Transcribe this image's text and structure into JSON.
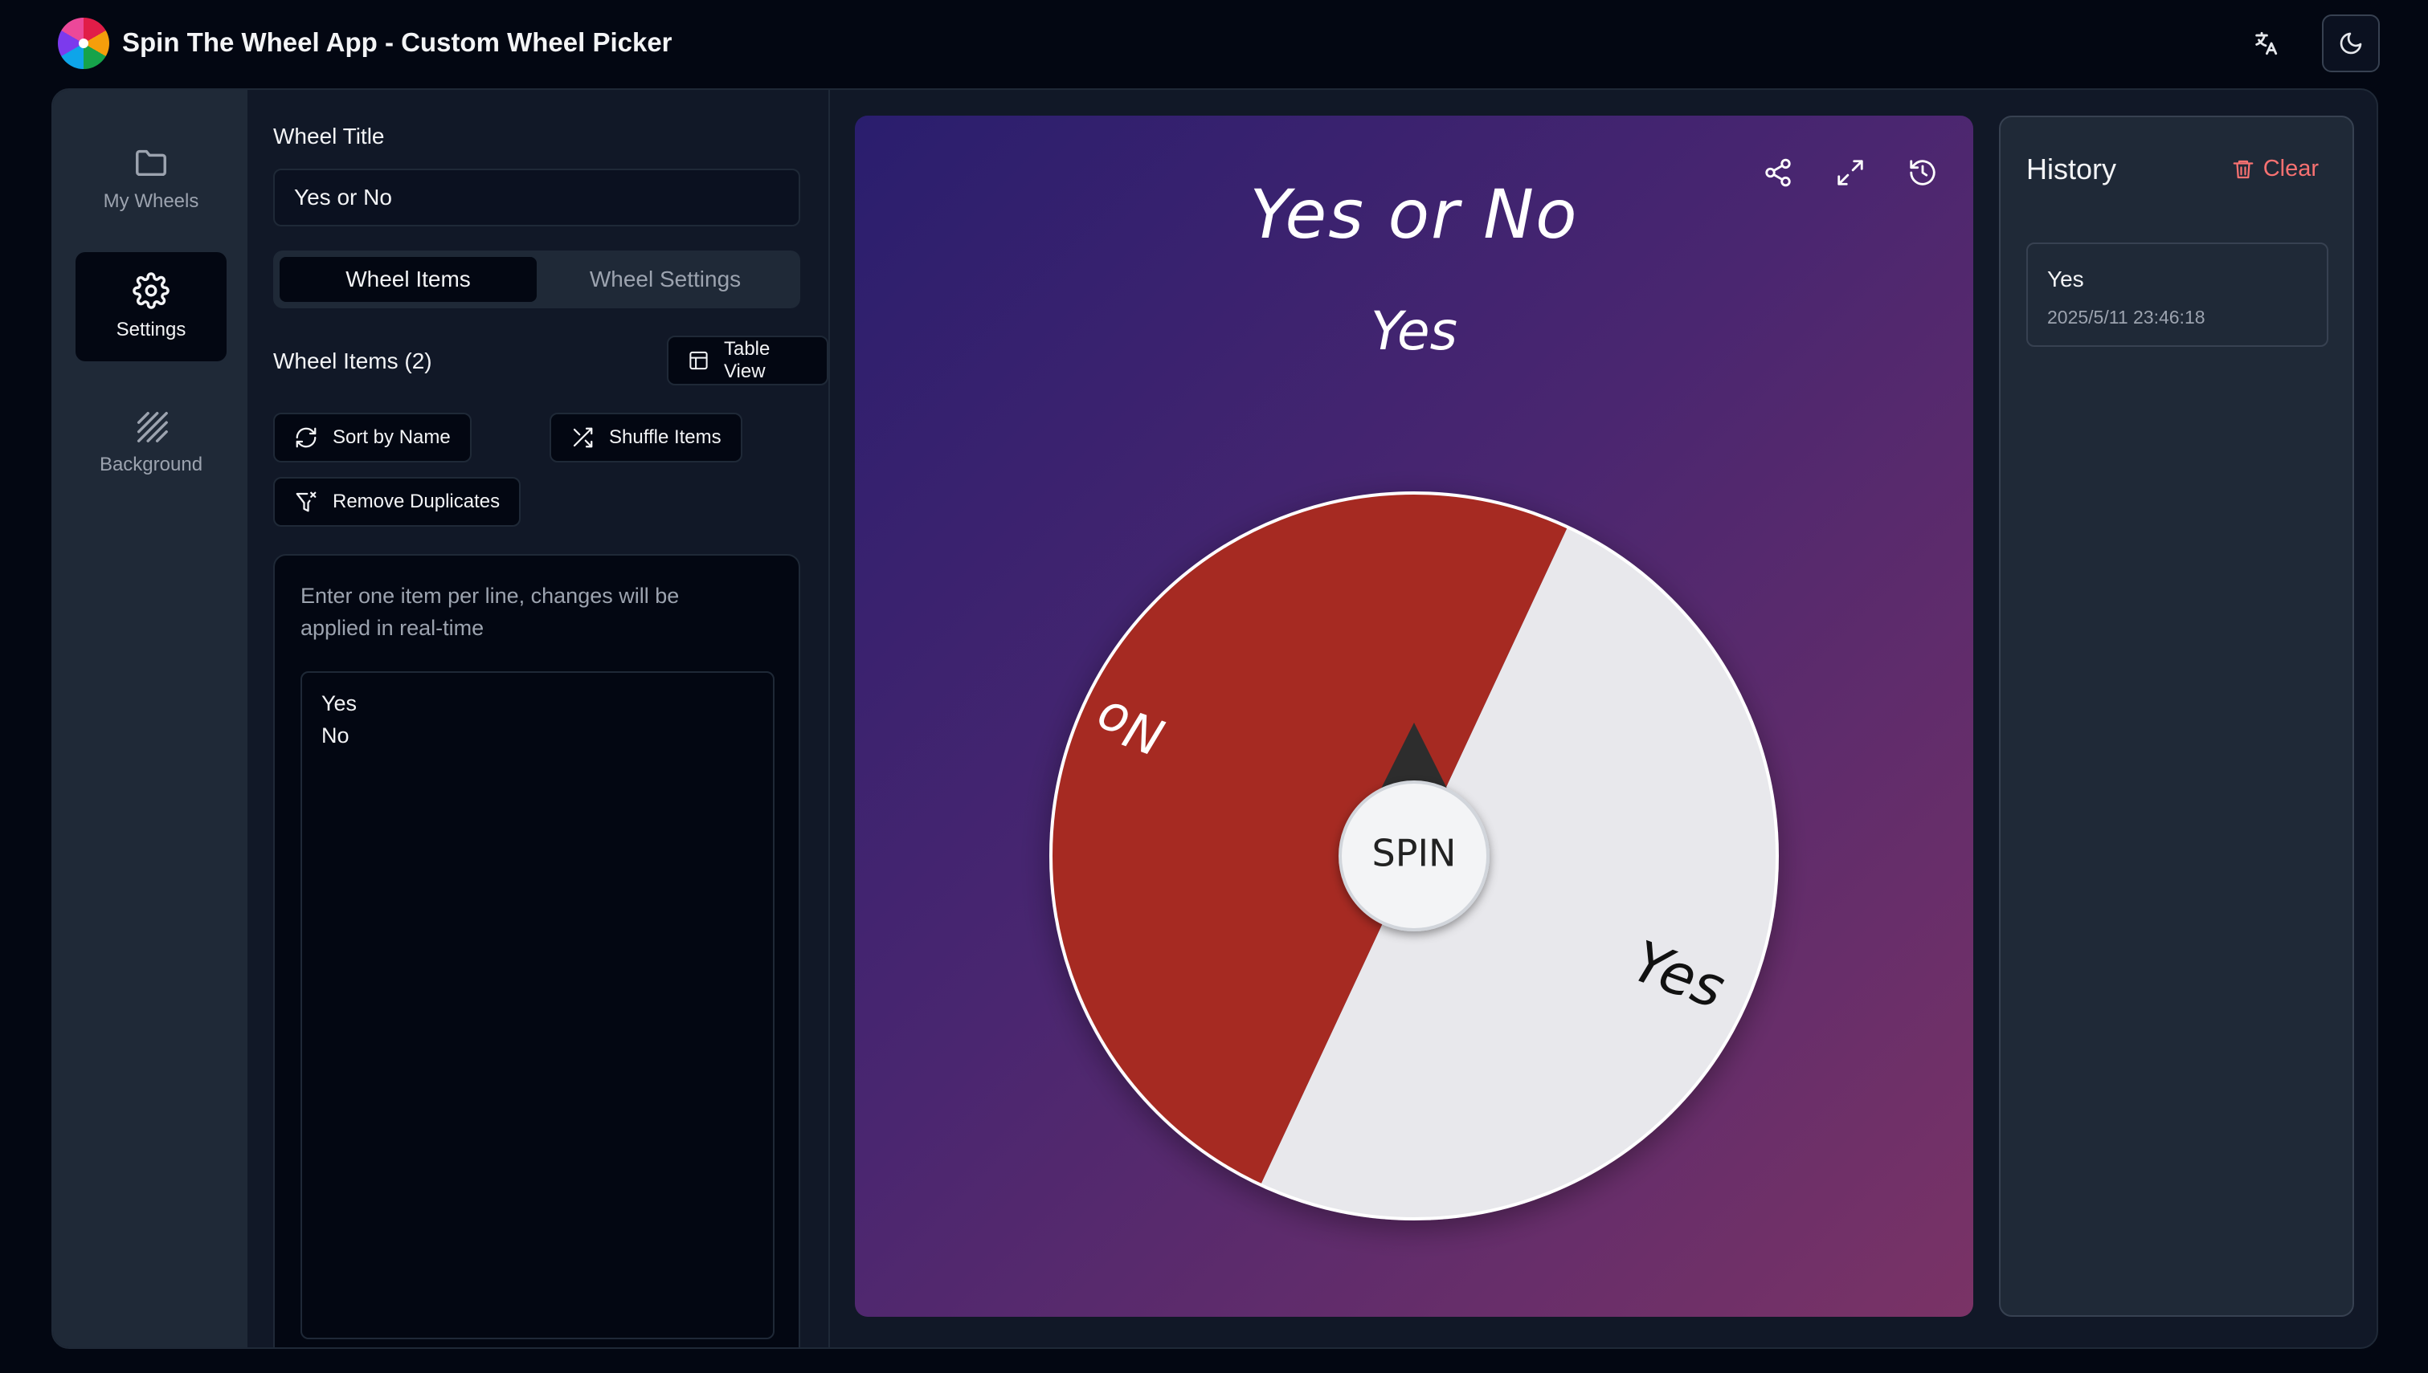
{
  "app": {
    "title": "Spin The Wheel App - Custom Wheel Picker"
  },
  "rail": [
    {
      "label": "My Wheels",
      "icon": "folder-icon"
    },
    {
      "label": "Settings",
      "icon": "gear-icon"
    },
    {
      "label": "Background",
      "icon": "pattern-icon"
    }
  ],
  "settings": {
    "title_label": "Wheel Title",
    "title_value": "Yes or No",
    "tabs": [
      "Wheel Items",
      "Wheel Settings"
    ],
    "items_count_label": "Wheel Items (2)",
    "table_view": "Table View",
    "sort_by_name": "Sort by Name",
    "shuffle_items": "Shuffle Items",
    "remove_duplicates": "Remove Duplicates",
    "hint": "Enter one item per line, changes will be applied in real-time",
    "items_text": "Yes\nNo"
  },
  "wheel": {
    "title": "Yes or No",
    "result": "Yes",
    "spin_label": "SPIN",
    "segments": [
      {
        "label": "Yes",
        "color": "#e8e8ec",
        "text_color": "#111111"
      },
      {
        "label": "No",
        "color": "#a62b22",
        "text_color": "#ffffff"
      }
    ]
  },
  "history": {
    "title": "History",
    "clear": "Clear",
    "entries": [
      {
        "value": "Yes",
        "time": "2025/5/11 23:46:18"
      }
    ]
  }
}
